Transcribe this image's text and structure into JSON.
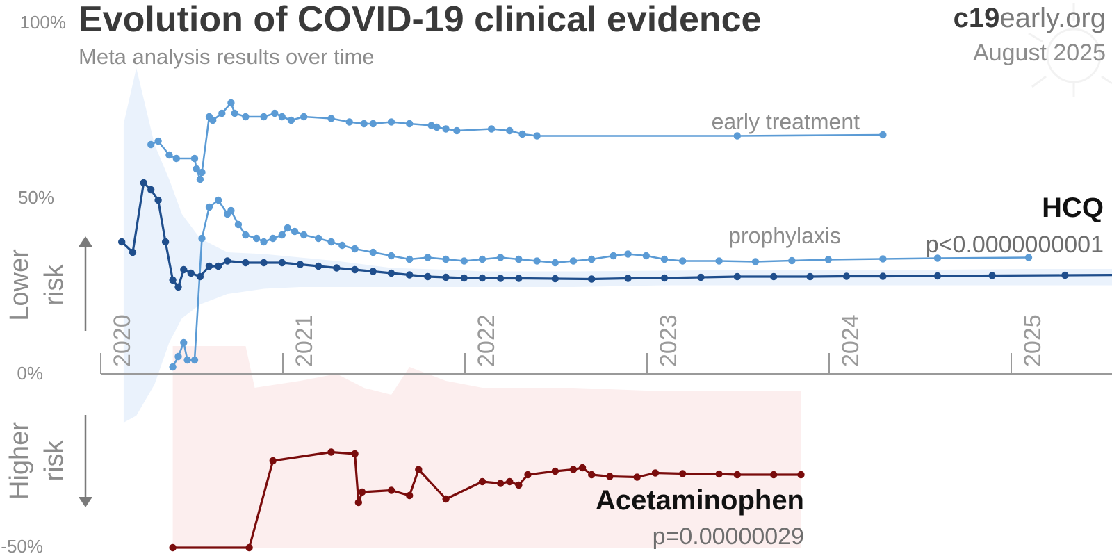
{
  "header": {
    "title": "Evolution of COVID-19 clinical evidence",
    "subtitle": "Meta analysis results over time",
    "brand_bold": "c19",
    "brand_rest": "early.org",
    "date": "August 2025"
  },
  "side_labels": {
    "lower": [
      "Lower",
      "risk"
    ],
    "higher": [
      "Higher",
      "risk"
    ]
  },
  "colors": {
    "hcq": "#1f4e8c",
    "hcq_sub": "#5b9bd5",
    "hcq_band": "#e6f0fc",
    "acet": "#7a0c0c",
    "acet_band": "#fcebeb",
    "axis": "#9a9a9a"
  },
  "chart_data": {
    "type": "line",
    "x_axis": {
      "ticks": [
        "2020",
        "2021",
        "2022",
        "2023",
        "2024",
        "2025"
      ],
      "range": [
        2020.0,
        2025.55
      ]
    },
    "y_axis": {
      "ticks": [
        "100%",
        "50%",
        "0%",
        "-50%"
      ],
      "range": [
        -50,
        100
      ],
      "unit": "%"
    },
    "series": [
      {
        "key": "early",
        "name": "early treatment",
        "color": "#5b9bd5",
        "points": [
          [
            2020.18,
            66
          ],
          [
            2020.22,
            67
          ],
          [
            2020.28,
            63
          ],
          [
            2020.32,
            62
          ],
          [
            2020.42,
            62
          ],
          [
            2020.43,
            59
          ],
          [
            2020.45,
            56
          ],
          [
            2020.46,
            58
          ],
          [
            2020.5,
            74
          ],
          [
            2020.52,
            73
          ],
          [
            2020.57,
            75
          ],
          [
            2020.62,
            78
          ],
          [
            2020.64,
            75
          ],
          [
            2020.7,
            74
          ],
          [
            2020.8,
            74
          ],
          [
            2020.86,
            75
          ],
          [
            2020.9,
            74
          ],
          [
            2020.95,
            73
          ],
          [
            2021.02,
            74
          ],
          [
            2021.17,
            73.5
          ],
          [
            2021.27,
            72.5
          ],
          [
            2021.35,
            72
          ],
          [
            2021.4,
            72
          ],
          [
            2021.5,
            72.5
          ],
          [
            2021.6,
            72
          ],
          [
            2021.72,
            71.5
          ],
          [
            2021.75,
            71
          ],
          [
            2021.8,
            70.5
          ],
          [
            2021.86,
            70
          ],
          [
            2022.05,
            70.5
          ],
          [
            2022.15,
            70
          ],
          [
            2022.22,
            69
          ],
          [
            2022.3,
            68.5
          ],
          [
            2023.4,
            68.5
          ],
          [
            2024.2,
            68.8
          ]
        ]
      },
      {
        "key": "prophylaxis",
        "name": "prophylaxis",
        "color": "#5b9bd5",
        "points": [
          [
            2020.3,
            2
          ],
          [
            2020.33,
            5
          ],
          [
            2020.36,
            9
          ],
          [
            2020.38,
            4
          ],
          [
            2020.42,
            4
          ],
          [
            2020.46,
            39
          ],
          [
            2020.5,
            48
          ],
          [
            2020.55,
            50
          ],
          [
            2020.6,
            46
          ],
          [
            2020.62,
            47
          ],
          [
            2020.66,
            43
          ],
          [
            2020.7,
            40
          ],
          [
            2020.76,
            39
          ],
          [
            2020.8,
            38
          ],
          [
            2020.85,
            39
          ],
          [
            2020.9,
            40
          ],
          [
            2020.93,
            42
          ],
          [
            2020.97,
            41
          ],
          [
            2021.02,
            40
          ],
          [
            2021.1,
            39
          ],
          [
            2021.17,
            38
          ],
          [
            2021.23,
            37
          ],
          [
            2021.3,
            36
          ],
          [
            2021.4,
            35
          ],
          [
            2021.5,
            34
          ],
          [
            2021.6,
            33
          ],
          [
            2021.7,
            33.5
          ],
          [
            2021.8,
            33
          ],
          [
            2021.9,
            32.5
          ],
          [
            2022.0,
            33
          ],
          [
            2022.1,
            33.5
          ],
          [
            2022.2,
            33
          ],
          [
            2022.3,
            32.5
          ],
          [
            2022.4,
            32
          ],
          [
            2022.5,
            32.5
          ],
          [
            2022.6,
            33
          ],
          [
            2022.72,
            34
          ],
          [
            2022.8,
            34.5
          ],
          [
            2022.9,
            34
          ],
          [
            2023.0,
            33
          ],
          [
            2023.1,
            32.5
          ],
          [
            2023.3,
            32.5
          ],
          [
            2023.5,
            32.3
          ],
          [
            2023.7,
            32.6
          ],
          [
            2023.9,
            32.9
          ],
          [
            2024.2,
            33.1
          ],
          [
            2024.5,
            33.3
          ],
          [
            2025.0,
            33.5
          ]
        ]
      },
      {
        "key": "all",
        "name": "",
        "color": "#1f4e8c",
        "points": [
          [
            2020.02,
            38
          ],
          [
            2020.08,
            35
          ],
          [
            2020.14,
            55
          ],
          [
            2020.18,
            53
          ],
          [
            2020.22,
            50
          ],
          [
            2020.26,
            38
          ],
          [
            2020.3,
            27
          ],
          [
            2020.33,
            25
          ],
          [
            2020.36,
            30
          ],
          [
            2020.4,
            29
          ],
          [
            2020.45,
            28
          ],
          [
            2020.5,
            31
          ],
          [
            2020.55,
            31
          ],
          [
            2020.6,
            32.5
          ],
          [
            2020.7,
            32
          ],
          [
            2020.8,
            32
          ],
          [
            2020.9,
            32
          ],
          [
            2021.0,
            31.5
          ],
          [
            2021.1,
            31
          ],
          [
            2021.2,
            30.5
          ],
          [
            2021.3,
            30
          ],
          [
            2021.4,
            29.5
          ],
          [
            2021.5,
            29
          ],
          [
            2021.6,
            28.5
          ],
          [
            2021.7,
            28
          ],
          [
            2021.8,
            27.8
          ],
          [
            2021.9,
            27.6
          ],
          [
            2022.0,
            27.6
          ],
          [
            2022.1,
            27.5
          ],
          [
            2022.2,
            27.5
          ],
          [
            2022.4,
            27.4
          ],
          [
            2022.6,
            27.3
          ],
          [
            2022.8,
            27.5
          ],
          [
            2023.0,
            27.6
          ],
          [
            2023.2,
            27.8
          ],
          [
            2023.4,
            28
          ],
          [
            2023.6,
            28
          ],
          [
            2023.8,
            28
          ],
          [
            2024.0,
            28.1
          ],
          [
            2024.2,
            28.1
          ],
          [
            2024.5,
            28.2
          ],
          [
            2024.8,
            28.3
          ],
          [
            2025.2,
            28.4
          ],
          [
            2025.55,
            28.5
          ]
        ]
      },
      {
        "key": "acet",
        "name": "",
        "color": "#7a0c0c",
        "points": [
          [
            2020.3,
            -50
          ],
          [
            2020.72,
            -50
          ],
          [
            2020.85,
            -25
          ],
          [
            2021.17,
            -22.5
          ],
          [
            2021.3,
            -23
          ],
          [
            2021.32,
            -37
          ],
          [
            2021.34,
            -34
          ],
          [
            2021.5,
            -33.5
          ],
          [
            2021.6,
            -35
          ],
          [
            2021.65,
            -27.5
          ],
          [
            2021.8,
            -36
          ],
          [
            2022.0,
            -31
          ],
          [
            2022.1,
            -31.5
          ],
          [
            2022.15,
            -31
          ],
          [
            2022.2,
            -32
          ],
          [
            2022.25,
            -29
          ],
          [
            2022.4,
            -28
          ],
          [
            2022.5,
            -27.5
          ],
          [
            2022.55,
            -27
          ],
          [
            2022.6,
            -29
          ],
          [
            2022.7,
            -29.5
          ],
          [
            2022.85,
            -29.7
          ],
          [
            2022.95,
            -28.5
          ],
          [
            2023.1,
            -28.7
          ],
          [
            2023.3,
            -28.8
          ],
          [
            2023.4,
            -29
          ],
          [
            2023.6,
            -29
          ],
          [
            2023.75,
            -29
          ]
        ]
      }
    ],
    "bands": [
      {
        "key": "hcq_band",
        "x": [
          2020.03,
          2020.1,
          2020.2,
          2020.28,
          2020.35,
          2020.45,
          2020.6,
          2020.8,
          2021.0,
          2021.2,
          2021.5,
          2021.8,
          2022.0,
          2022.5,
          2023.0,
          2023.5,
          2024.0,
          2024.5,
          2025.0,
          2025.55
        ],
        "upper": [
          72,
          88,
          66,
          56,
          46,
          39,
          35,
          34.5,
          33.5,
          32.5,
          30.5,
          30,
          29.5,
          29.5,
          29.7,
          29.9,
          30,
          30,
          30.2,
          30.2
        ],
        "lower": [
          -14,
          -12,
          -3,
          9,
          16,
          20,
          23,
          24.5,
          25,
          25,
          25,
          25,
          25,
          25,
          25.5,
          25.5,
          25.5,
          25.5,
          25.5,
          25.5
        ]
      },
      {
        "key": "acet_band",
        "x": [
          2020.3,
          2020.7,
          2020.75,
          2021.0,
          2021.2,
          2021.35,
          2021.5,
          2021.6,
          2021.8,
          2022.0,
          2022.2,
          2022.5,
          2023.0,
          2023.5,
          2023.75
        ],
        "upper": [
          8,
          8,
          -4,
          -2,
          0,
          -4,
          -6,
          2,
          -2,
          -4,
          -4,
          -4,
          -5,
          -5,
          -5
        ],
        "lower": [
          -50,
          -50,
          -50,
          -50,
          -50,
          -50,
          -50,
          -50,
          -50,
          -50,
          -50,
          -50,
          -50,
          -50,
          -50
        ]
      }
    ],
    "annotations": {
      "early_label": "early treatment",
      "prophylaxis_label": "prophylaxis",
      "hcq_name": "HCQ",
      "hcq_p": "p<0.0000000001",
      "acet_name": "Acetaminophen",
      "acet_p": "p=0.00000029"
    },
    "grid": false,
    "legend": "none"
  }
}
